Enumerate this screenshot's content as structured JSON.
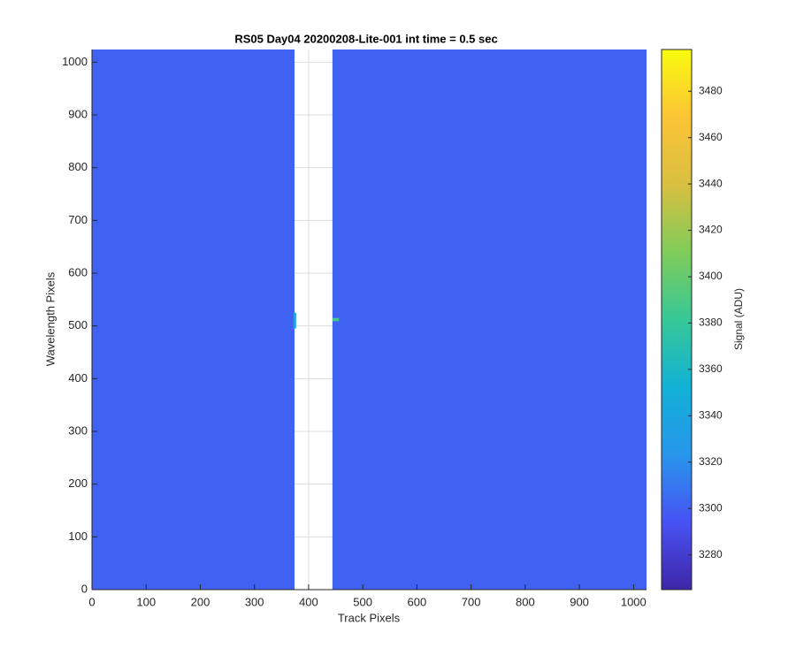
{
  "chart_data": {
    "type": "heatmap",
    "title": "RS05 Day04 20200208-Lite-001 int time = 0.5 sec",
    "xlabel": "Track Pixels",
    "ylabel": "Wavelength Pixels",
    "xlim": [
      0,
      1024
    ],
    "ylim": [
      0,
      1024
    ],
    "xticks": [
      0,
      100,
      200,
      300,
      400,
      500,
      600,
      700,
      800,
      900,
      1000
    ],
    "yticks": [
      0,
      100,
      200,
      300,
      400,
      500,
      600,
      700,
      800,
      900,
      1000
    ],
    "grid": true,
    "regions": [
      {
        "x": [
          0,
          374
        ],
        "y": [
          0,
          1024
        ],
        "value": 3301
      },
      {
        "x": [
          444,
          1024
        ],
        "y": [
          0,
          1024
        ],
        "value": 3301
      },
      {
        "x": [
          372,
          377
        ],
        "y": [
          495,
          525
        ],
        "value": 3335
      },
      {
        "x": [
          444,
          456
        ],
        "y": [
          509,
          515
        ],
        "value": 3385
      }
    ],
    "colorbar": {
      "label": "Signal (ADU)",
      "clim": [
        3265,
        3498
      ],
      "ticks": [
        3280,
        3300,
        3320,
        3340,
        3360,
        3380,
        3400,
        3420,
        3440,
        3460,
        3480
      ],
      "colormap": [
        "#3e26a8",
        "#4852f4",
        "#2796eb",
        "#12b1d6",
        "#37c897",
        "#80cc59",
        "#d9bf41",
        "#fbc435",
        "#f9fb0e"
      ]
    }
  }
}
